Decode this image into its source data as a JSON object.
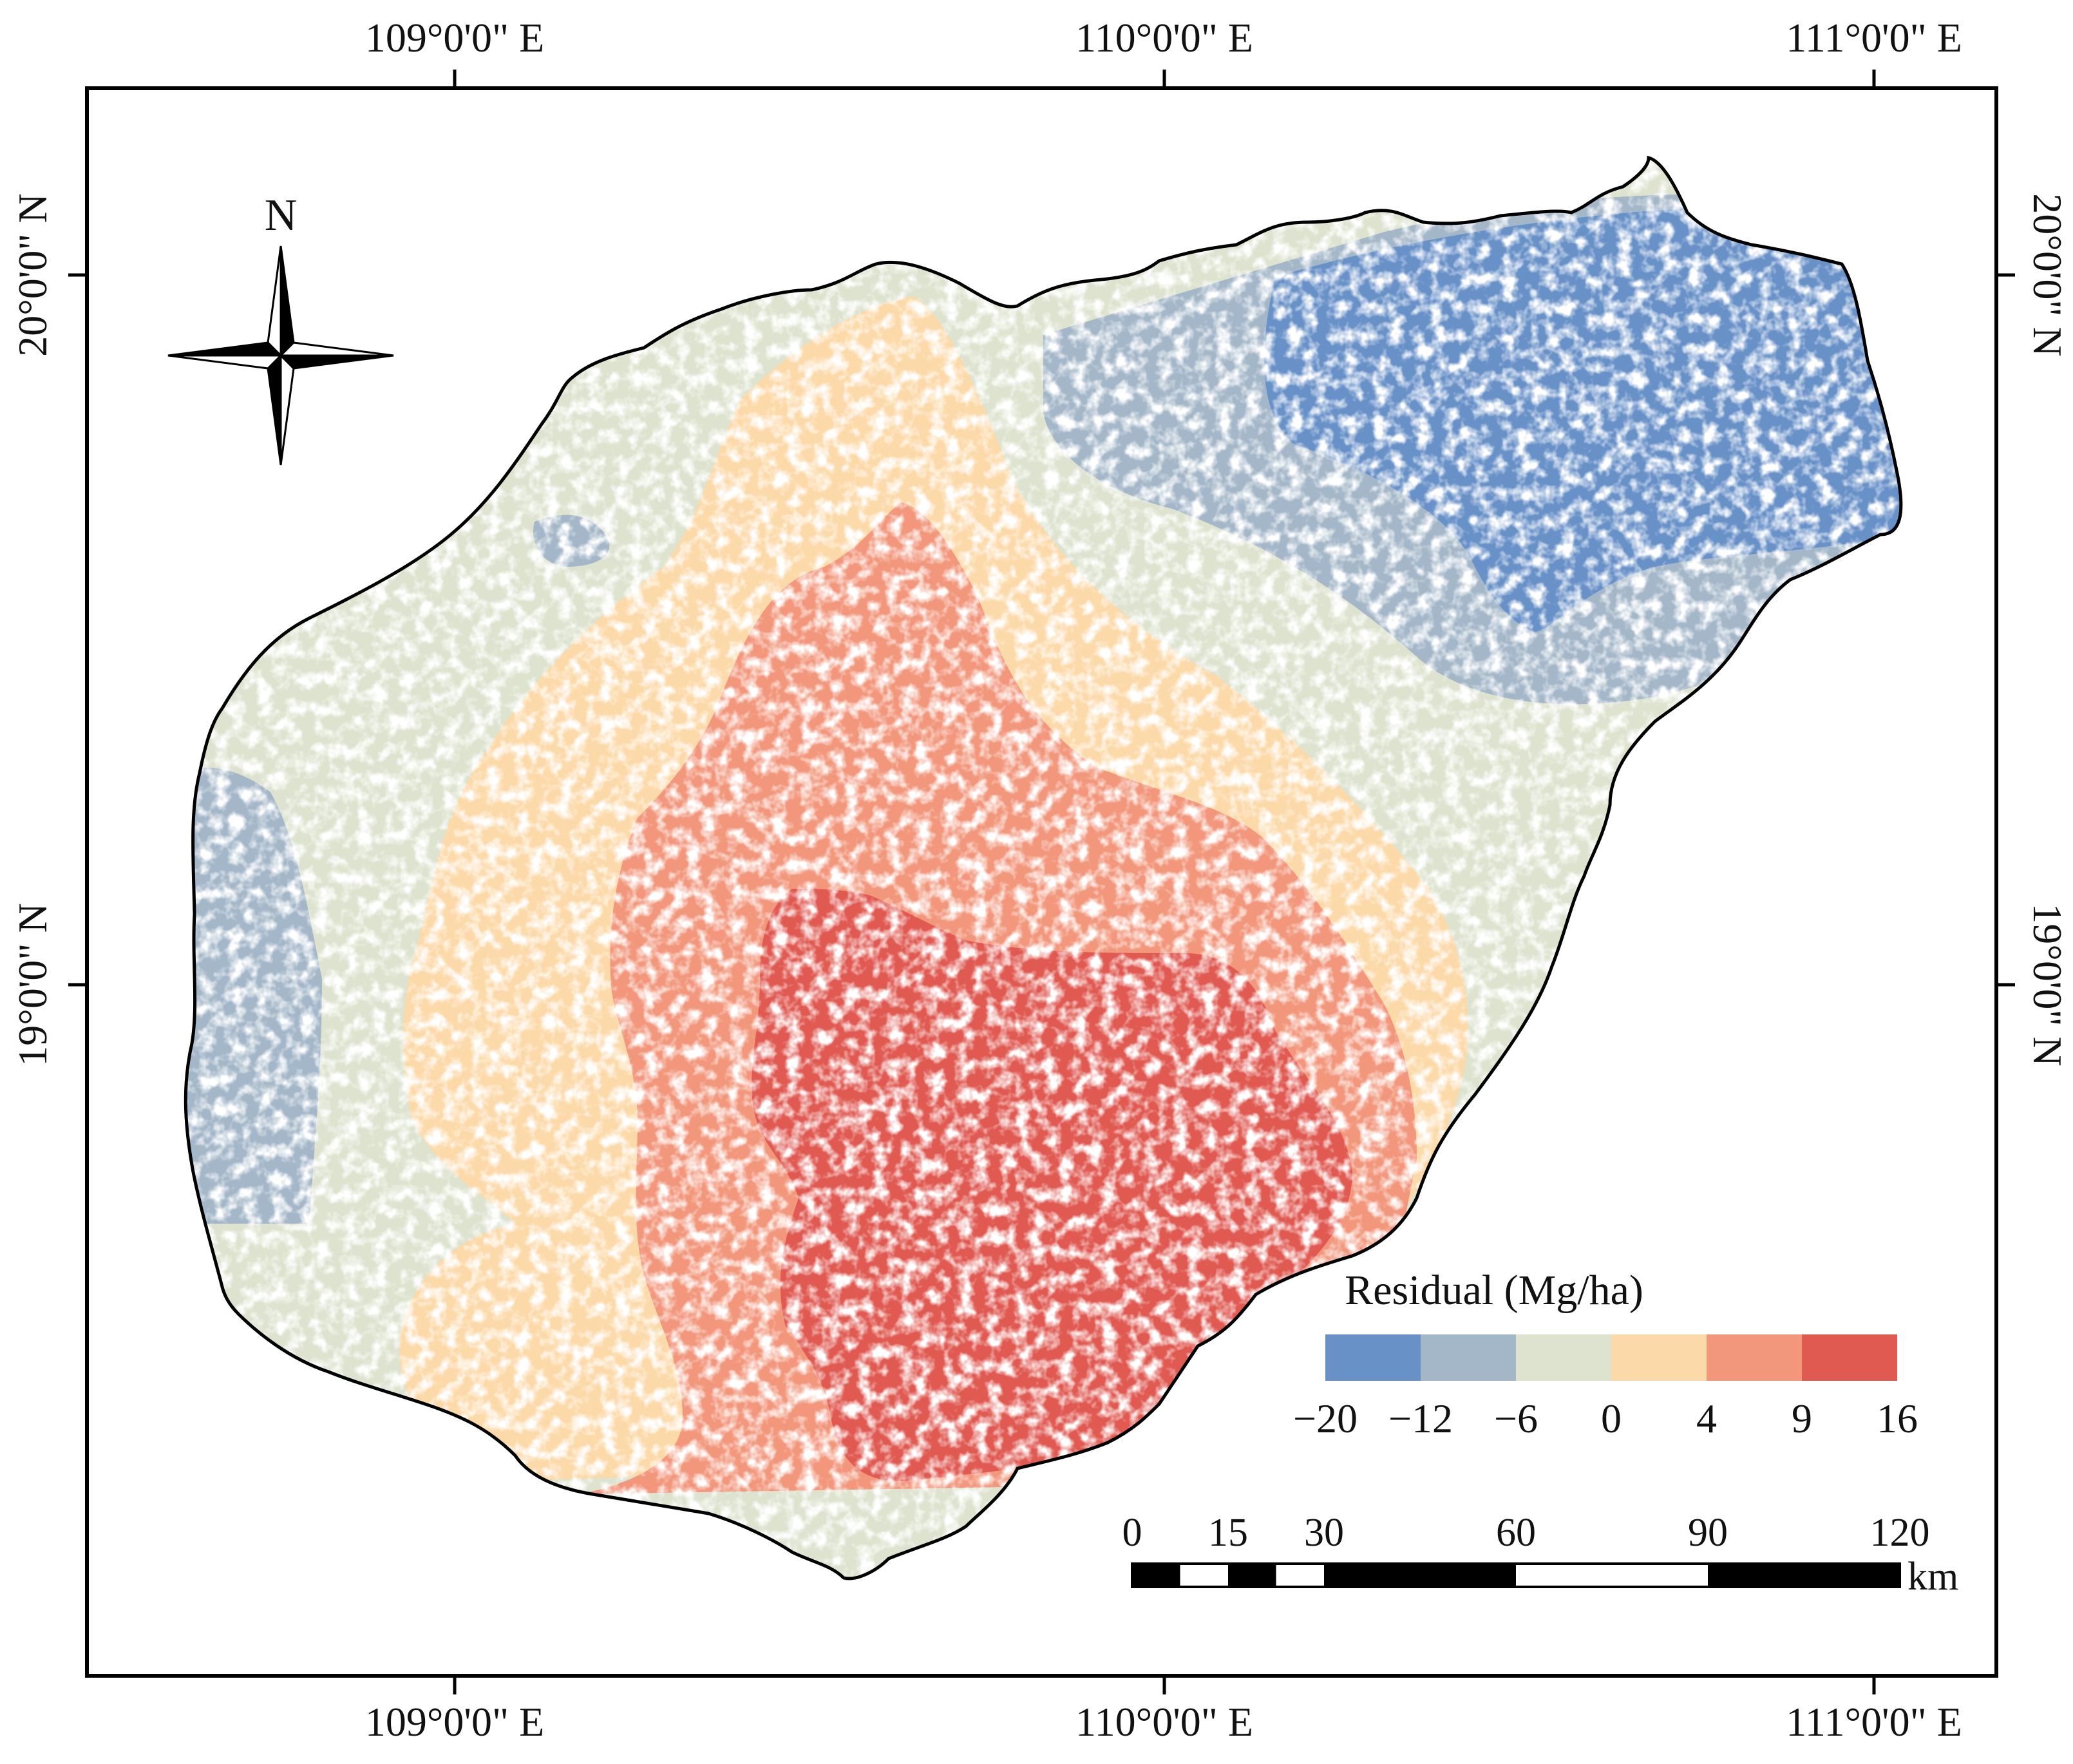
{
  "map": {
    "colors": {
      "frame": "#000000",
      "coast": "#000000",
      "background": "#ffffff"
    },
    "axes": {
      "top_labels": [
        "109°0'0\" E",
        "110°0'0\" E",
        "111°0'0\" E"
      ],
      "bottom_labels": [
        "109°0'0\" E",
        "110°0'0\" E",
        "111°0'0\" E"
      ],
      "left_labels": [
        "20°0'0\" N",
        "19°0'0\" N"
      ],
      "right_labels": [
        "20°0'0\" N",
        "19°0'0\" N"
      ]
    },
    "north_arrow": {
      "label": "N"
    },
    "legend": {
      "title": "Residual (Mg/ha)",
      "classes": [
        {
          "from": -20,
          "to": -12,
          "color": "#6891c8"
        },
        {
          "from": -12,
          "to": -6,
          "color": "#a4b7c9"
        },
        {
          "from": -6,
          "to": 0,
          "color": "#dde3cf"
        },
        {
          "from": 0,
          "to": 4,
          "color": "#fcd9a8"
        },
        {
          "from": 4,
          "to": 9,
          "color": "#f2977c"
        },
        {
          "from": 9,
          "to": 16,
          "color": "#e05a52"
        }
      ],
      "tick_labels": [
        "−20",
        "−12",
        "−6",
        "0",
        "4",
        "9",
        "16"
      ]
    },
    "scale_bar": {
      "ticks": [
        "0",
        "15",
        "30",
        "60",
        "90",
        "120"
      ],
      "unit": "km"
    }
  }
}
